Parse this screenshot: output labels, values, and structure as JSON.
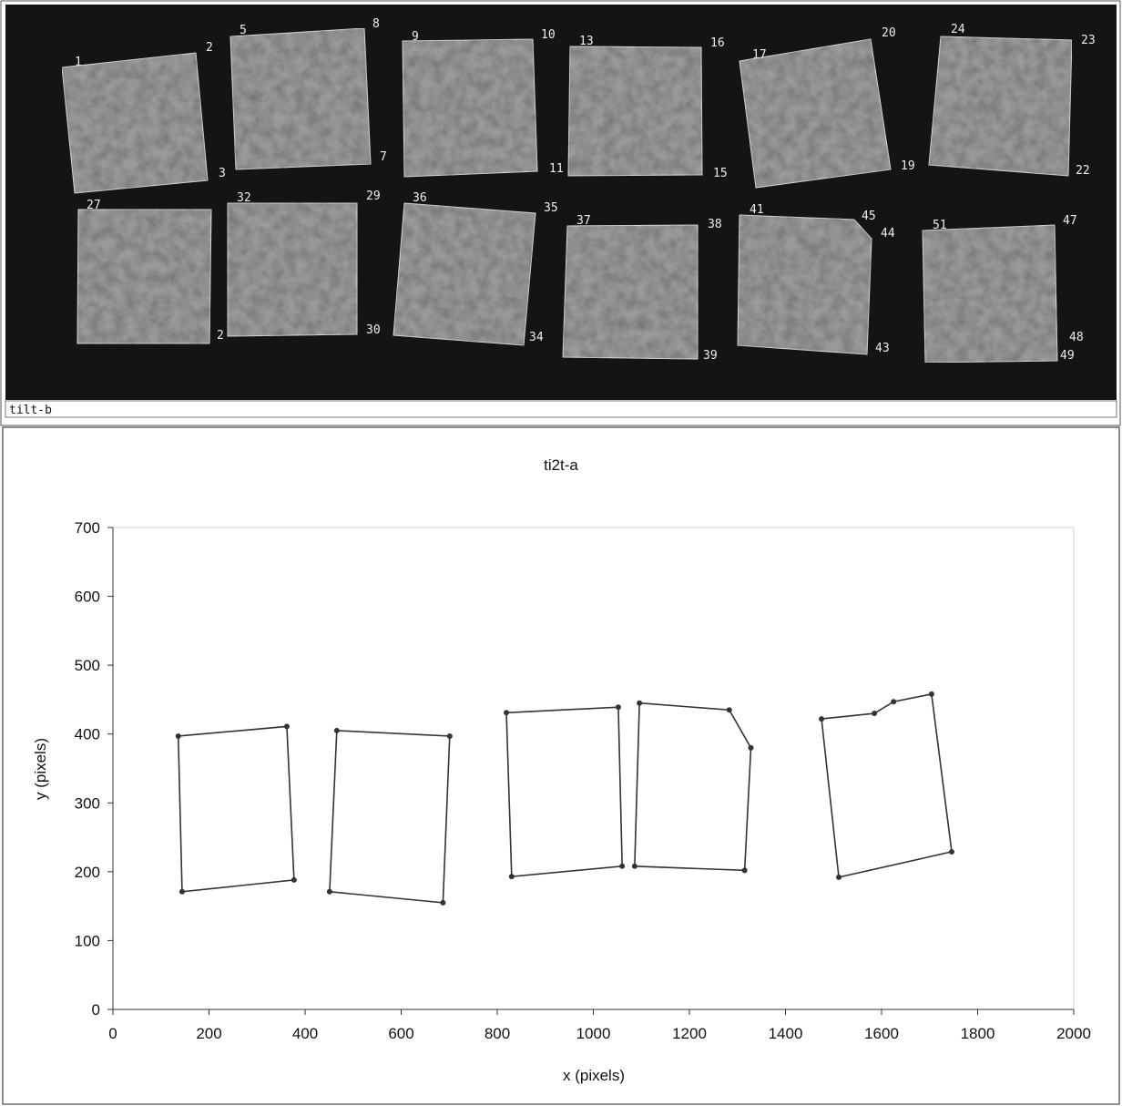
{
  "photo": {
    "caption": "tilt-b",
    "labels": [
      "1",
      "2",
      "3",
      "5",
      "8",
      "7",
      "9",
      "10",
      "11",
      "13",
      "16",
      "15",
      "17",
      "20",
      "19",
      "24",
      "23",
      "22",
      "27",
      "32",
      "29",
      "2",
      "30",
      "36",
      "35",
      "34",
      "37",
      "38",
      "39",
      "41",
      "45",
      "44",
      "43",
      "51",
      "47",
      "48",
      "49"
    ]
  },
  "chart_data": {
    "type": "line",
    "title": "ti2t-a",
    "x_label": "x (pixels)",
    "y_label": "y (pixels)",
    "xlim": [
      0,
      2000
    ],
    "xticks": [
      0,
      200,
      400,
      600,
      800,
      1000,
      1200,
      1400,
      1600,
      1800,
      2000
    ],
    "ylim": [
      0,
      700
    ],
    "yticks": [
      0,
      100,
      200,
      300,
      400,
      500,
      600,
      700
    ],
    "closed": true,
    "series": [
      {
        "color": "#333333",
        "x": [
          136,
          362,
          377,
          144
        ],
        "values": [
          397,
          411,
          188,
          171
        ]
      },
      {
        "color": "#333333",
        "x": [
          466,
          701,
          687,
          451
        ],
        "values": [
          405,
          397,
          155,
          171
        ]
      },
      {
        "color": "#333333",
        "x": [
          819,
          1052,
          1060,
          830
        ],
        "values": [
          431,
          439,
          208,
          193
        ]
      },
      {
        "color": "#333333",
        "x": [
          1096,
          1283,
          1328,
          1315,
          1086
        ],
        "values": [
          445,
          435,
          380,
          202,
          208
        ]
      },
      {
        "color": "#333333",
        "x": [
          1475,
          1585,
          1625,
          1704,
          1746,
          1511
        ],
        "values": [
          422,
          430,
          447,
          458,
          229,
          192
        ]
      }
    ]
  }
}
